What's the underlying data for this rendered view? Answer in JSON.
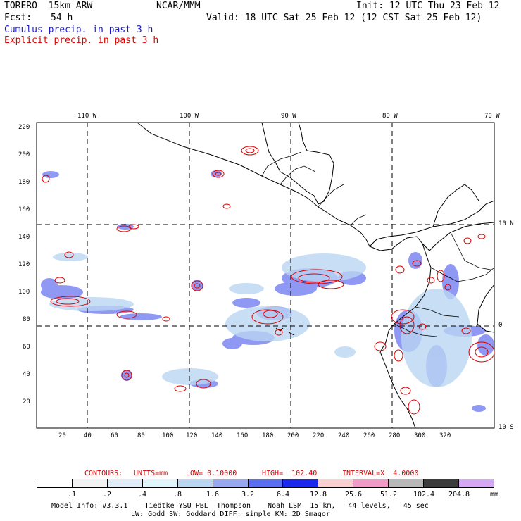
{
  "header": {
    "model": "TORERO  15km ARW",
    "org": "NCAR/MMM",
    "init": "Init: 12 UTC Thu 23 Feb 12",
    "fcst_label": "Fcst:",
    "fcst_value": "54 h",
    "valid": "Valid: 18 UTC Sat 25 Feb 12 (12 CST Sat 25 Feb 12)",
    "field1": "Cumulus precip. in past 3 h",
    "field2": "Explicit precip. in past 3 h"
  },
  "colors": {
    "field1": "#1a1acc",
    "field2": "#e00000",
    "contour": "#dd0000"
  },
  "axes": {
    "top_lon": [
      "110 W",
      "100 W",
      "90 W",
      "80 W",
      "70 W"
    ],
    "right_lat": [
      "10 N",
      "0",
      "10 S"
    ],
    "left_y": [
      "220",
      "200",
      "180",
      "160",
      "140",
      "120",
      "100",
      "80",
      "60",
      "40",
      "20"
    ],
    "bottom_x": [
      "20",
      "40",
      "60",
      "80",
      "100",
      "120",
      "140",
      "160",
      "180",
      "200",
      "220",
      "240",
      "260",
      "280",
      "300",
      "320"
    ]
  },
  "contours_line": {
    "label": "CONTOURS:",
    "units": "UNITS=mm",
    "low": "LOW= 0.10000",
    "high": "HIGH=  102.40",
    "interval": "INTERVAL=X  4.0000"
  },
  "legend": {
    "thresholds": [
      ".1",
      ".2",
      ".4",
      ".8",
      "1.6",
      "3.2",
      "6.4",
      "12.8",
      "25.6",
      "51.2",
      "102.4",
      "204.8"
    ],
    "units": "mm",
    "colors": [
      "#ffffff",
      "#f2f2f2",
      "#e0ecf8",
      "#dff4fb",
      "#bad6f2",
      "#98a8f0",
      "#5a6ef2",
      "#1a28ee",
      "#f8d0d0",
      "#f09ac8",
      "#b8b8b8",
      "#3c3c3c",
      "#d6a8f4"
    ]
  },
  "footer": {
    "line1": "Model Info: V3.3.1    Tiedtke YSU PBL  Thompson    Noah LSM  15 km,   44 levels,   45 sec",
    "line2": "LW: Godd SW: Goddard DIFF: simple KM: 2D Smagor"
  }
}
